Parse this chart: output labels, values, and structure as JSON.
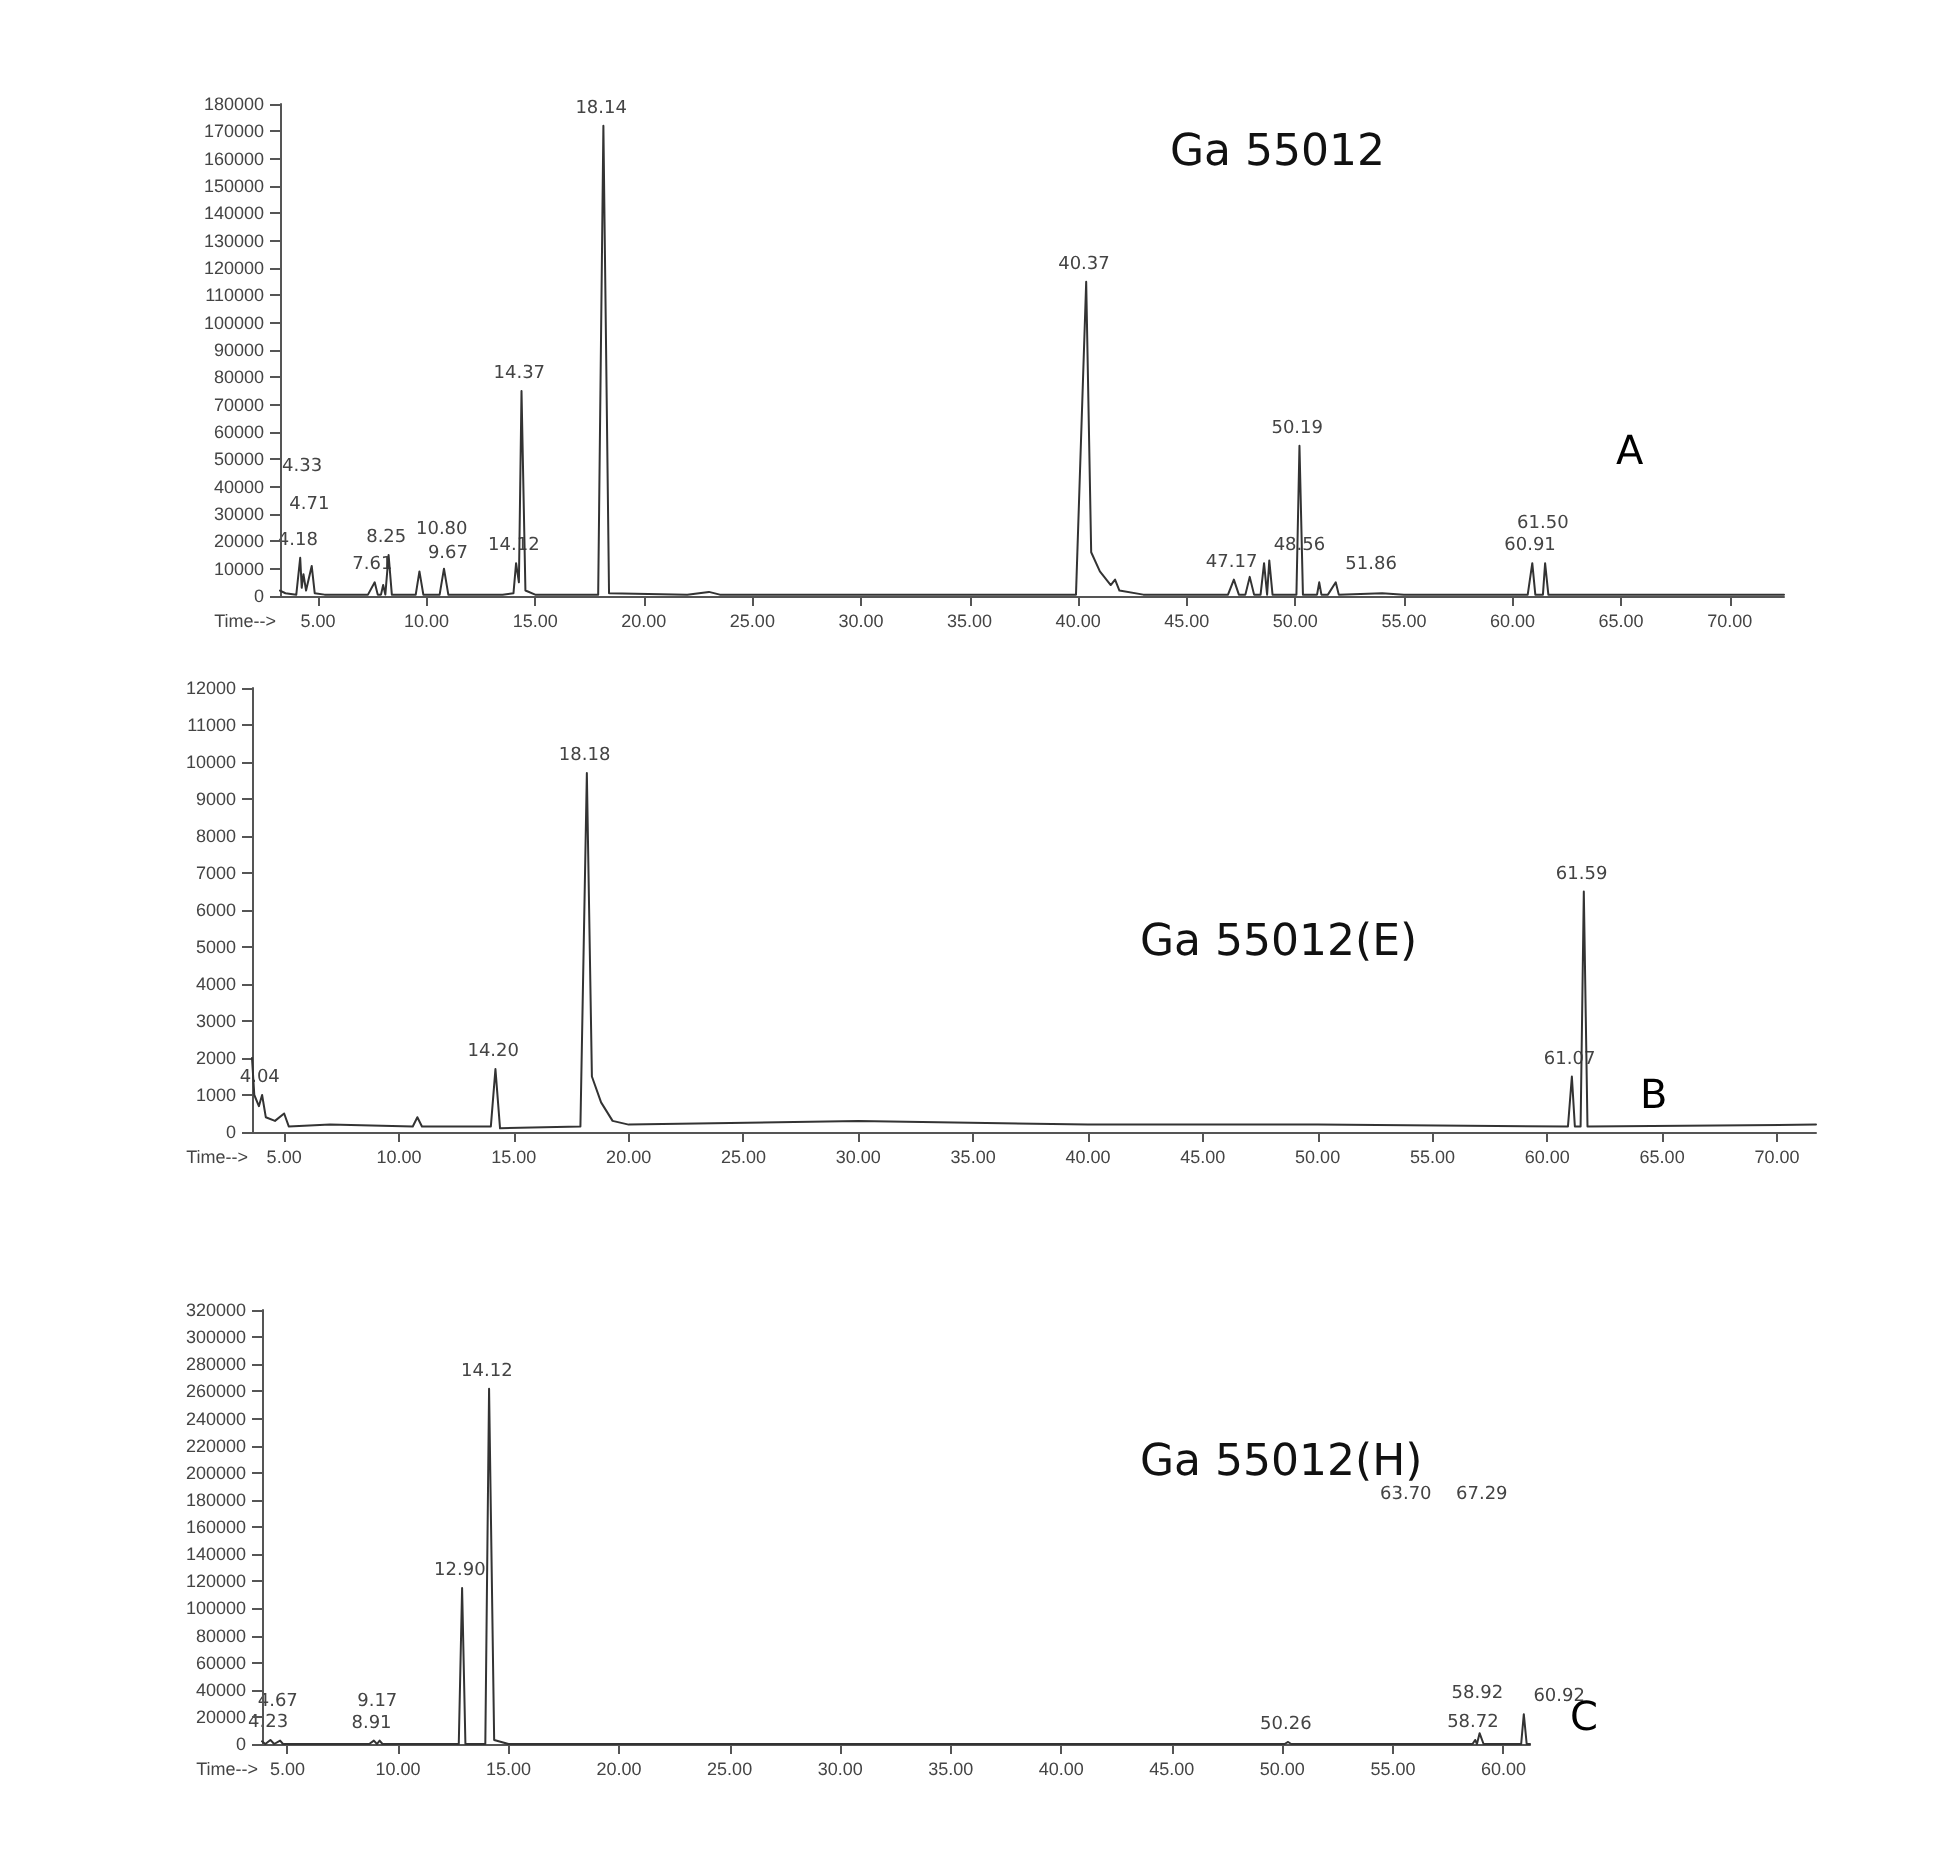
{
  "chart_data": [
    {
      "type": "line",
      "title": "Ga 55012",
      "xlabel": "Time-->",
      "color": "#333333",
      "marker": "none",
      "grid": false,
      "x": [
        3.25,
        3.5,
        4.0,
        4.18,
        4.25,
        4.33,
        4.45,
        4.71,
        4.85,
        5.3,
        7.3,
        7.61,
        7.75,
        7.9,
        8.0,
        8.1,
        8.25,
        8.4,
        9.5,
        9.67,
        9.85,
        10.6,
        10.8,
        11.0,
        13.5,
        14.0,
        14.12,
        14.25,
        14.37,
        14.55,
        15.0,
        17.9,
        18.14,
        18.4,
        22,
        23,
        23.5,
        39.9,
        40.37,
        40.6,
        41.0,
        41.5,
        41.7,
        41.9,
        43,
        46.9,
        47.17,
        47.4,
        47.7,
        47.9,
        48.1,
        48.4,
        48.56,
        48.7,
        48.8,
        48.95,
        50.05,
        50.19,
        50.35,
        51.0,
        51.1,
        51.2,
        51.5,
        51.86,
        52.0,
        54,
        55,
        60.7,
        60.91,
        61.05,
        61.4,
        61.5,
        61.65,
        72.5
      ],
      "values": [
        2000,
        1000,
        500,
        14000,
        3000,
        8000,
        2000,
        11000,
        1000,
        500,
        500,
        5000,
        500,
        500,
        4000,
        500,
        15000,
        500,
        500,
        9000,
        500,
        500,
        10000,
        500,
        500,
        1000,
        12000,
        5000,
        75000,
        2000,
        500,
        500,
        172000,
        1000,
        500,
        1500,
        500,
        500,
        115000,
        16000,
        9000,
        4000,
        6000,
        2000,
        500,
        500,
        6000,
        500,
        500,
        7000,
        500,
        500,
        12000,
        500,
        13000,
        500,
        500,
        55000,
        500,
        500,
        5000,
        500,
        500,
        5000,
        500,
        1000,
        500,
        500,
        12000,
        500,
        500,
        12000,
        500,
        500
      ],
      "xlim": [
        3.25,
        72.5
      ],
      "xticks": [
        {
          "value": 5,
          "label": "5.00"
        },
        {
          "value": 10,
          "label": "10.00"
        },
        {
          "value": 15,
          "label": "15.00"
        },
        {
          "value": 20,
          "label": "20.00"
        },
        {
          "value": 25,
          "label": "25.00"
        },
        {
          "value": 30,
          "label": "30.00"
        },
        {
          "value": 35,
          "label": "35.00"
        },
        {
          "value": 40,
          "label": "40.00"
        },
        {
          "value": 45,
          "label": "45.00"
        },
        {
          "value": 50,
          "label": "50.00"
        },
        {
          "value": 55,
          "label": "55.00"
        },
        {
          "value": 60,
          "label": "60.00"
        },
        {
          "value": 65,
          "label": "65.00"
        },
        {
          "value": 70,
          "label": "70.00"
        }
      ],
      "ylim": [
        0,
        180000
      ],
      "yticks": [
        0,
        10000,
        20000,
        30000,
        40000,
        50000,
        60000,
        70000,
        80000,
        90000,
        100000,
        110000,
        120000,
        130000,
        140000,
        150000,
        160000,
        170000,
        180000
      ],
      "annotations": [
        "A",
        {
          "text": "4.18",
          "x": 4.18,
          "y": 14000
        },
        {
          "text": "4.71",
          "x": 4.71,
          "y": 11000
        },
        "4.33",
        {
          "text": "7.61",
          "x": 7.61,
          "y": 5000
        },
        {
          "text": "8.25",
          "x": 8.25,
          "y": 15000
        },
        {
          "text": "9.67",
          "x": 9.67,
          "y": 9000
        },
        {
          "text": "10.80",
          "x": 10.8,
          "y": 10000
        },
        {
          "text": "14.12",
          "x": 14.12,
          "y": 12000
        },
        {
          "text": "14.37",
          "x": 14.37,
          "y": 75000
        },
        {
          "text": "18.14",
          "x": 18.14,
          "y": 172000
        },
        {
          "text": "40.37",
          "x": 40.37,
          "y": 115000
        },
        {
          "text": "47.17",
          "x": 47.17,
          "y": 6000
        },
        {
          "text": "48.56",
          "x": 48.56,
          "y": 12000
        },
        {
          "text": "50.19",
          "x": 50.19,
          "y": 55000
        },
        {
          "text": "51.86",
          "x": 51.86,
          "y": 5000
        },
        {
          "text": "60.91",
          "x": 60.91,
          "y": 12000
        },
        {
          "text": "61.50",
          "x": 61.5,
          "y": 12000
        }
      ]
    },
    {
      "type": "line",
      "title": "Ga 55012(E)",
      "xlabel": "Time-->",
      "color": "#333333",
      "marker": "none",
      "grid": false,
      "x": [
        3.6,
        3.7,
        3.9,
        4.04,
        4.2,
        4.6,
        5.0,
        5.2,
        7,
        10.6,
        10.8,
        11.0,
        14.0,
        14.2,
        14.4,
        17.9,
        18.18,
        18.4,
        18.8,
        19.3,
        20,
        30,
        40,
        50,
        60.9,
        61.07,
        61.2,
        61.45,
        61.59,
        61.75,
        71.7
      ],
      "values": [
        2000,
        1000,
        700,
        1000,
        400,
        300,
        500,
        150,
        200,
        150,
        400,
        150,
        150,
        1700,
        100,
        150,
        9700,
        1500,
        800,
        300,
        200,
        300,
        200,
        200,
        150,
        1500,
        150,
        150,
        6500,
        150,
        200
      ],
      "xlim": [
        3.6,
        71.7
      ],
      "xticks": [
        {
          "value": 5,
          "label": "5.00"
        },
        {
          "value": 10,
          "label": "10.00"
        },
        {
          "value": 15,
          "label": "15.00"
        },
        {
          "value": 20,
          "label": "20.00"
        },
        {
          "value": 25,
          "label": "25.00"
        },
        {
          "value": 30,
          "label": "30.00"
        },
        {
          "value": 35,
          "label": "35.00"
        },
        {
          "value": 40,
          "label": "40.00"
        },
        {
          "value": 45,
          "label": "45.00"
        },
        {
          "value": 50,
          "label": "50.00"
        },
        {
          "value": 55,
          "label": "55.00"
        },
        {
          "value": 60,
          "label": "60.00"
        },
        {
          "value": 65,
          "label": "65.00"
        },
        {
          "value": 70,
          "label": "70.00"
        }
      ],
      "ylim": [
        0,
        12000
      ],
      "yticks": [
        0,
        1000,
        2000,
        3000,
        4000,
        5000,
        6000,
        7000,
        8000,
        9000,
        10000,
        11000,
        12000
      ],
      "annotations": [
        "B",
        {
          "text": "4.04",
          "x": 4.04,
          "y": 1000
        },
        {
          "text": "14.20",
          "x": 14.2,
          "y": 1700
        },
        {
          "text": "18.18",
          "x": 18.18,
          "y": 9700
        },
        {
          "text": "61.07",
          "x": 61.07,
          "y": 1500
        },
        {
          "text": "61.59",
          "x": 61.59,
          "y": 6500
        }
      ]
    },
    {
      "type": "line",
      "title": "Ga 55012(H)",
      "xlabel": "Time-->",
      "color": "#333333",
      "marker": "none",
      "grid": false,
      "x": [
        3.85,
        4.0,
        4.23,
        4.4,
        4.67,
        4.8,
        8.7,
        8.91,
        9.05,
        9.17,
        9.3,
        12.75,
        12.9,
        13.05,
        13.95,
        14.12,
        14.35,
        15,
        50.1,
        50.26,
        50.4,
        58.6,
        58.72,
        58.8,
        58.92,
        59.1,
        60.8,
        60.92,
        61.05,
        61.2
      ],
      "values": [
        2000,
        0,
        3000,
        0,
        2500,
        0,
        0,
        2500,
        0,
        2500,
        0,
        0,
        115000,
        0,
        0,
        262000,
        3000,
        0,
        0,
        1500,
        0,
        0,
        3000,
        0,
        8000,
        0,
        0,
        22000,
        0,
        0
      ],
      "xlim": [
        3.85,
        61.2
      ],
      "xticks": [
        {
          "value": 5,
          "label": "5.00"
        },
        {
          "value": 10,
          "label": "10.00"
        },
        {
          "value": 15,
          "label": "15.00"
        },
        {
          "value": 20,
          "label": "20.00"
        },
        {
          "value": 25,
          "label": "25.00"
        },
        {
          "value": 30,
          "label": "30.00"
        },
        {
          "value": 35,
          "label": "35.00"
        },
        {
          "value": 40,
          "label": "40.00"
        },
        {
          "value": 45,
          "label": "45.00"
        },
        {
          "value": 50,
          "label": "50.00"
        },
        {
          "value": 55,
          "label": "55.00"
        },
        {
          "value": 60,
          "label": "60.00"
        }
      ],
      "ylim": [
        0,
        320000
      ],
      "yticks": [
        0,
        20000,
        40000,
        60000,
        80000,
        100000,
        120000,
        140000,
        160000,
        180000,
        200000,
        220000,
        240000,
        260000,
        280000,
        300000,
        320000
      ],
      "annotations": [
        "C",
        "63.70",
        "67.29",
        {
          "text": "4.23",
          "x": 4.23,
          "y": 3000
        },
        {
          "text": "4.67",
          "x": 4.67,
          "y": 2500
        },
        {
          "text": "8.91",
          "x": 8.91,
          "y": 2500
        },
        {
          "text": "9.17",
          "x": 9.17,
          "y": 2500
        },
        {
          "text": "12.90",
          "x": 12.9,
          "y": 115000
        },
        {
          "text": "14.12",
          "x": 14.12,
          "y": 262000
        },
        {
          "text": "50.26",
          "x": 50.26,
          "y": 1500
        },
        {
          "text": "58.72",
          "x": 58.72,
          "y": 3000
        },
        {
          "text": "58.92",
          "x": 58.92,
          "y": 8000
        },
        {
          "text": "60.92",
          "x": 60.92,
          "y": 22000
        }
      ]
    }
  ]
}
